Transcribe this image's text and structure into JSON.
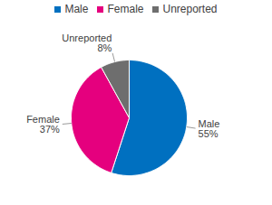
{
  "chart_data": {
    "type": "pie",
    "categories": [
      "Male",
      "Female",
      "Unreported"
    ],
    "values": [
      55,
      37,
      8
    ],
    "value_labels": [
      "55%",
      "37%",
      "8%"
    ],
    "colors": [
      "#0070c0",
      "#e5007e",
      "#6e6e6e"
    ],
    "legend": "top",
    "data_labels": true
  }
}
